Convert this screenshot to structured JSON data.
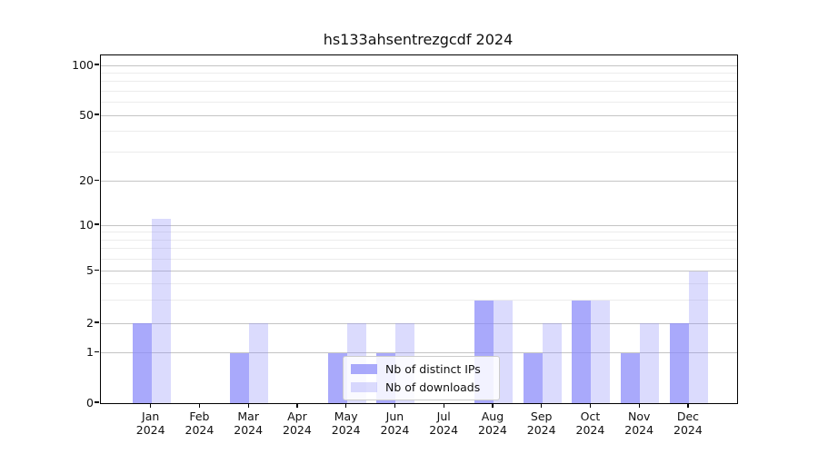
{
  "chart_data": {
    "type": "bar",
    "title": "hs133ahsentrezgcdf 2024",
    "x_tick_labels": [
      [
        "Jan",
        "2024"
      ],
      [
        "Feb",
        "2024"
      ],
      [
        "Mar",
        "2024"
      ],
      [
        "Apr",
        "2024"
      ],
      [
        "May",
        "2024"
      ],
      [
        "Jun",
        "2024"
      ],
      [
        "Jul",
        "2024"
      ],
      [
        "Aug",
        "2024"
      ],
      [
        "Sep",
        "2024"
      ],
      [
        "Oct",
        "2024"
      ],
      [
        "Nov",
        "2024"
      ],
      [
        "Dec",
        "2024"
      ]
    ],
    "series": [
      {
        "name": "Nb of distinct IPs",
        "base_color": "#8888fa",
        "alpha": 0.72,
        "values": [
          2,
          0,
          1,
          0,
          1,
          1,
          0,
          3,
          1,
          3,
          1,
          2
        ]
      },
      {
        "name": "Nb of downloads",
        "base_color": "#8888fa",
        "alpha": 0.3,
        "values": [
          11,
          0,
          2,
          0,
          2,
          2,
          0,
          3,
          2,
          3,
          2,
          5
        ]
      }
    ],
    "y_axis": {
      "scale": "log above 1, linear 0-1",
      "ticks": [
        100,
        50,
        20,
        10,
        5,
        2,
        1,
        0
      ],
      "minor_ticks": [
        3,
        4,
        6,
        7,
        8,
        9,
        30,
        40,
        60,
        70,
        80,
        90
      ],
      "ylim": [
        0,
        115
      ]
    },
    "legend": {
      "entries": [
        "Nb of distinct IPs",
        "Nb of downloads"
      ],
      "location": "lower center"
    },
    "grid": true
  }
}
